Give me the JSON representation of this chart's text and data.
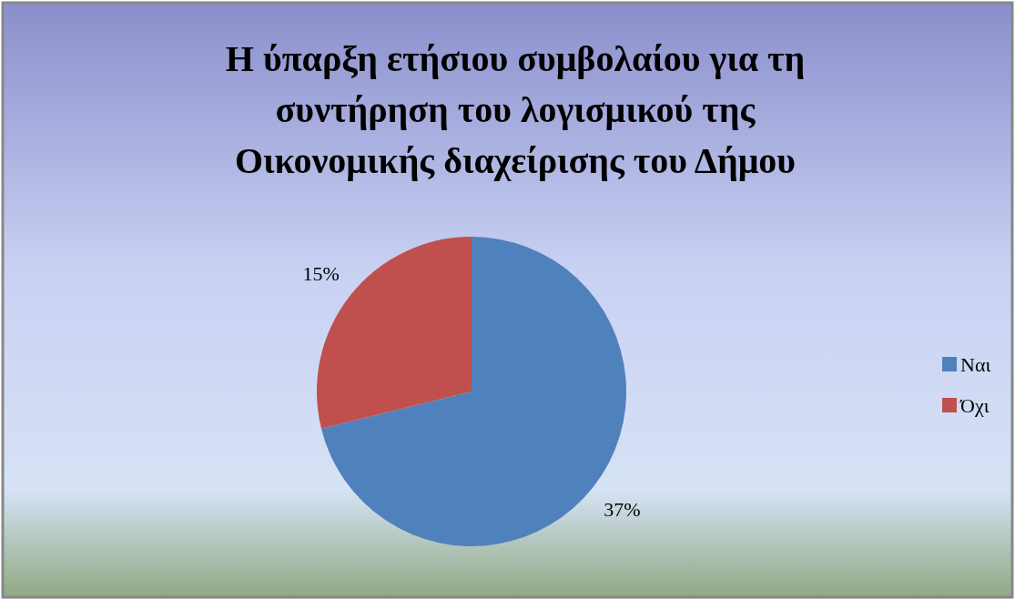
{
  "chart_data": {
    "type": "pie",
    "title": "Η ύπαρξη ετήσιου συμβολαίου για τη συντήρηση του λογισμικού της Οικονομικής διαχείρισης του Δήμου",
    "categories": [
      "Ναι",
      "Όχι"
    ],
    "values": [
      37,
      15
    ],
    "colors": [
      "#4f81bd",
      "#c0504d"
    ],
    "value_labels": [
      "37%",
      "15%"
    ],
    "legend": "right"
  }
}
